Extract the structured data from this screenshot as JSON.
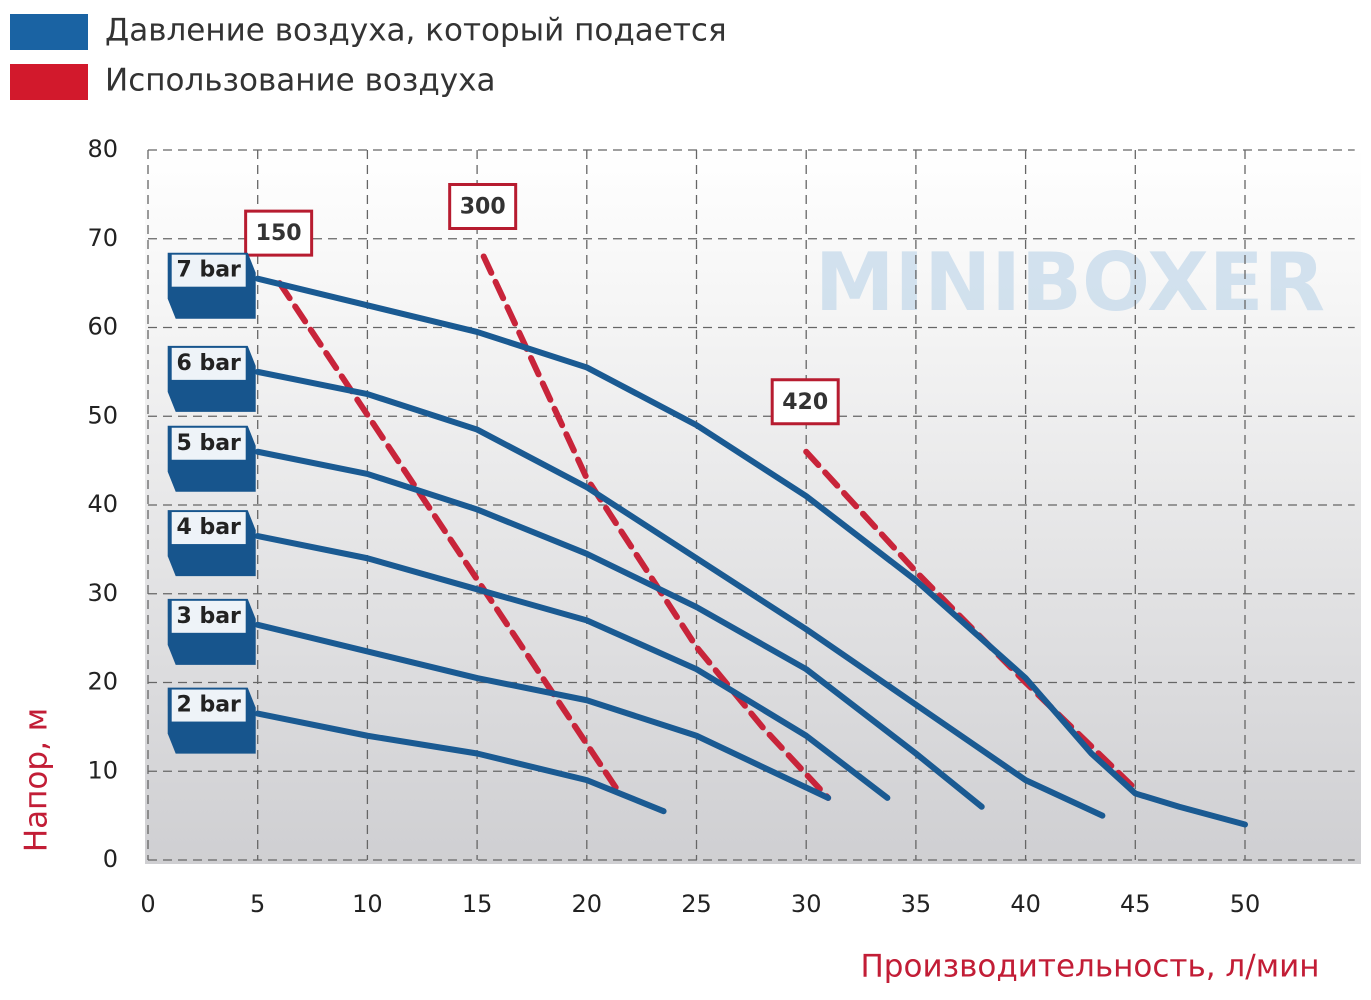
{
  "chart_data": {
    "type": "line",
    "legend": [
      {
        "label": "Давление воздуха, который подается",
        "color": "#1a63a3"
      },
      {
        "label": "Использование воздуха",
        "color": "#d2192c"
      }
    ],
    "watermark": "MINIBOXER",
    "x_label": "Производительность, л/мин",
    "y_label": "Напор, м",
    "xlim": [
      0,
      55
    ],
    "ylim": [
      0,
      80
    ],
    "xticks": [
      0,
      5,
      10,
      15,
      20,
      25,
      30,
      35,
      40,
      45,
      50
    ],
    "yticks": [
      0,
      10,
      20,
      30,
      40,
      50,
      60,
      70,
      80
    ],
    "grid": true,
    "series": [
      {
        "name": "7 bar",
        "color": "#1a5a92",
        "dashed": false,
        "x": [
          5,
          10,
          15,
          20,
          25,
          30,
          35,
          40,
          43,
          45,
          47,
          50
        ],
        "values": [
          65.5,
          62.5,
          59.5,
          55.5,
          49,
          41,
          31.5,
          20.5,
          12,
          7.5,
          6,
          4
        ]
      },
      {
        "name": "6 bar",
        "color": "#1a5a92",
        "dashed": false,
        "x": [
          5,
          10,
          15,
          20,
          25,
          30,
          35,
          40,
          43.5
        ],
        "values": [
          55,
          52.5,
          48.5,
          42,
          34,
          26,
          17.5,
          9,
          5
        ]
      },
      {
        "name": "5 bar",
        "color": "#1a5a92",
        "dashed": false,
        "x": [
          5,
          10,
          15,
          20,
          25,
          30,
          35,
          38
        ],
        "values": [
          46,
          43.5,
          39.5,
          34.5,
          28.5,
          21.5,
          12,
          6
        ]
      },
      {
        "name": "4 bar",
        "color": "#1a5a92",
        "dashed": false,
        "x": [
          5,
          10,
          15,
          20,
          25,
          30,
          33.7
        ],
        "values": [
          36.5,
          34,
          30.5,
          27,
          21.5,
          14,
          7
        ]
      },
      {
        "name": "3 bar",
        "color": "#1a5a92",
        "dashed": false,
        "x": [
          5,
          10,
          15,
          20,
          25,
          31
        ],
        "values": [
          26.5,
          23.5,
          20.5,
          18,
          14,
          7
        ]
      },
      {
        "name": "2 bar",
        "color": "#1a5a92",
        "dashed": false,
        "x": [
          5,
          10,
          15,
          20,
          23.5
        ],
        "values": [
          16.5,
          14,
          12,
          9,
          5.5
        ]
      },
      {
        "name": "150",
        "color": "#c8243a",
        "dashed": true,
        "x": [
          6,
          21.5
        ],
        "values": [
          65,
          7.5
        ]
      },
      {
        "name": "300",
        "color": "#c8243a",
        "dashed": true,
        "x": [
          15.3,
          17,
          20,
          25,
          28,
          31
        ],
        "values": [
          68,
          59,
          43,
          24,
          15,
          7
        ]
      },
      {
        "name": "420",
        "color": "#c8243a",
        "dashed": true,
        "x": [
          30,
          35,
          40,
          45
        ],
        "values": [
          46,
          32.5,
          20,
          8
        ]
      }
    ]
  }
}
